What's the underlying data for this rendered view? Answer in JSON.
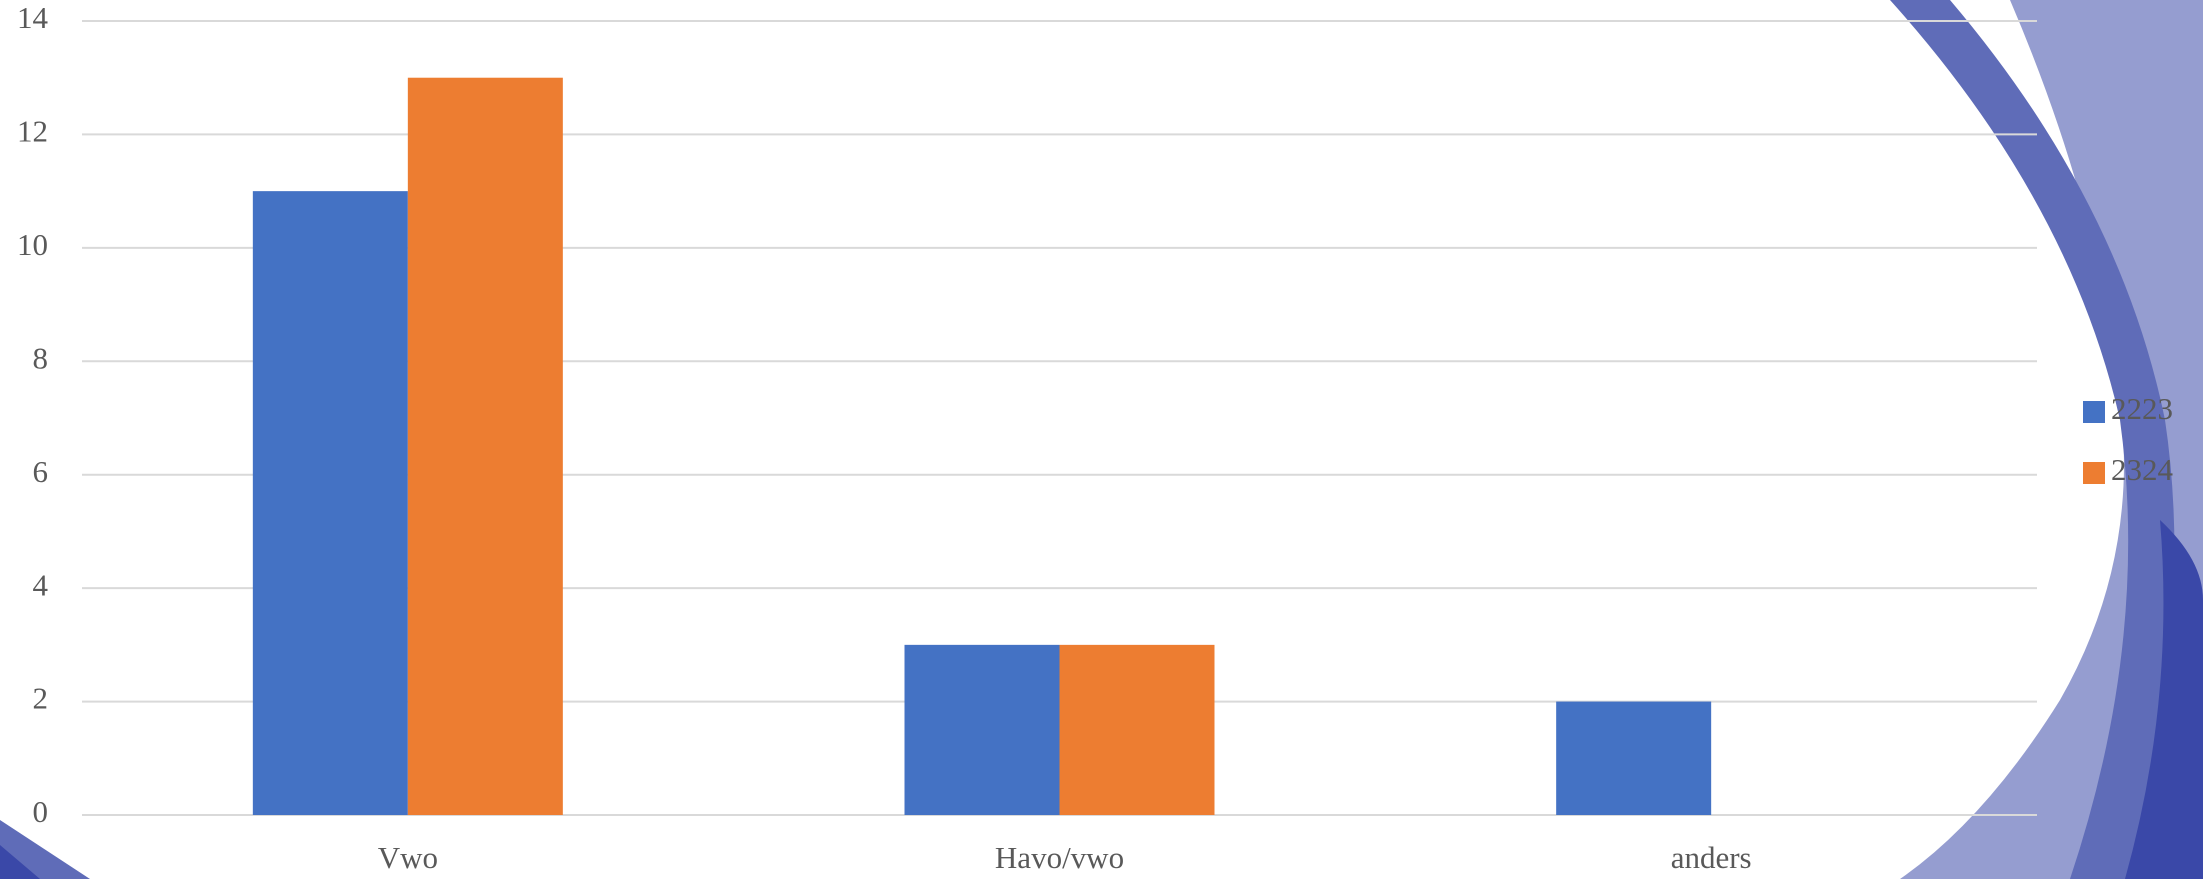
{
  "chart_data": {
    "type": "bar",
    "categories": [
      "Vwo",
      "Havo/vwo",
      "anders"
    ],
    "series": [
      {
        "name": "2223",
        "color": "#4472c4",
        "values": [
          11,
          3,
          2
        ]
      },
      {
        "name": "2324",
        "color": "#ed7d31",
        "values": [
          13,
          3,
          0
        ]
      }
    ],
    "ylim": [
      0,
      14
    ],
    "yticks": [
      0,
      2,
      4,
      6,
      8,
      10,
      12,
      14
    ],
    "grid": true,
    "legend": "right"
  }
}
